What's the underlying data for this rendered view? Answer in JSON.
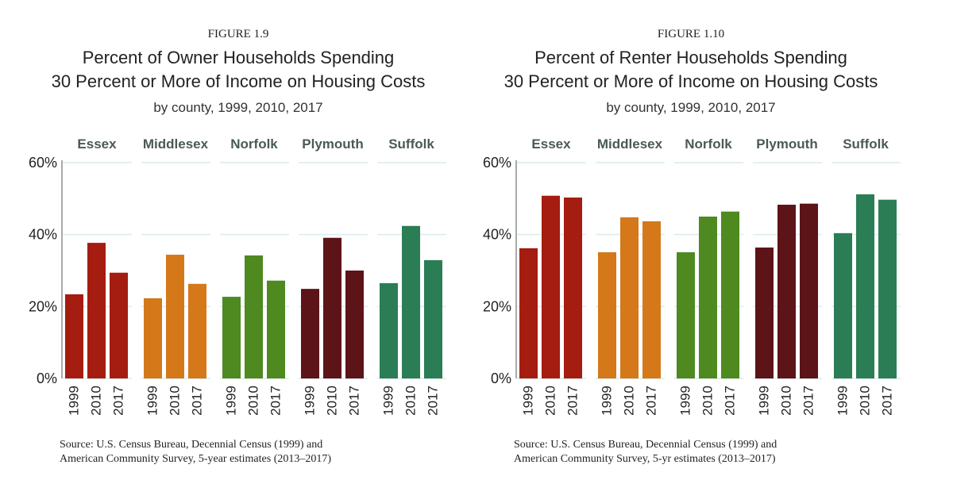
{
  "chart_data": [
    {
      "type": "bar",
      "figure_label": "FIGURE 1.9",
      "title": [
        "Percent of Owner Households Spending",
        "30 Percent or More of Income on Housing Costs"
      ],
      "subtitle": "by county, 1999, 2010, 2017",
      "categories": [
        "1999",
        "2010",
        "2017"
      ],
      "panels": [
        {
          "name": "Essex",
          "color": "#a51c10",
          "values": [
            23.4,
            37.7,
            29.4
          ]
        },
        {
          "name": "Middlesex",
          "color": "#d4781a",
          "values": [
            22.3,
            34.4,
            26.3
          ]
        },
        {
          "name": "Norfolk",
          "color": "#4e8a1f",
          "values": [
            22.7,
            34.2,
            27.2
          ]
        },
        {
          "name": "Plymouth",
          "color": "#5c1418",
          "values": [
            24.9,
            39.1,
            30.0
          ]
        },
        {
          "name": "Suffolk",
          "color": "#2b7d55",
          "values": [
            26.5,
            42.4,
            32.9
          ]
        }
      ],
      "ylim": [
        0,
        60
      ],
      "yticks": [
        {
          "value": 0,
          "label": "0%"
        },
        {
          "value": 20,
          "label": "20%"
        },
        {
          "value": 40,
          "label": "40%"
        },
        {
          "value": 60,
          "label": "60%"
        }
      ],
      "grid": true,
      "source": [
        "Source: U.S. Census Bureau, Decennial Census (1999) and",
        "American Community Survey, 5-year estimates (2013–2017)"
      ]
    },
    {
      "type": "bar",
      "figure_label": "FIGURE 1.10",
      "title": [
        "Percent of Renter Households Spending",
        "30 Percent or More of Income on Housing Costs"
      ],
      "subtitle": "by county, 1999, 2010, 2017",
      "categories": [
        "1999",
        "2010",
        "2017"
      ],
      "panels": [
        {
          "name": "Essex",
          "color": "#a51c10",
          "values": [
            36.2,
            50.8,
            50.3
          ]
        },
        {
          "name": "Middlesex",
          "color": "#d4781a",
          "values": [
            35.1,
            44.8,
            43.7
          ]
        },
        {
          "name": "Norfolk",
          "color": "#4e8a1f",
          "values": [
            35.1,
            45.0,
            46.4
          ]
        },
        {
          "name": "Plymouth",
          "color": "#5c1418",
          "values": [
            36.4,
            48.3,
            48.6
          ]
        },
        {
          "name": "Suffolk",
          "color": "#2b7d55",
          "values": [
            40.4,
            51.2,
            49.7
          ]
        }
      ],
      "ylim": [
        0,
        60
      ],
      "yticks": [
        {
          "value": 0,
          "label": "0%"
        },
        {
          "value": 20,
          "label": "20%"
        },
        {
          "value": 40,
          "label": "40%"
        },
        {
          "value": 60,
          "label": "60%"
        }
      ],
      "grid": true,
      "source": [
        "Source: U.S. Census Bureau, Decennial Census (1999) and",
        "American Community Survey, 5-yr estimates (2013–2017)"
      ]
    }
  ]
}
